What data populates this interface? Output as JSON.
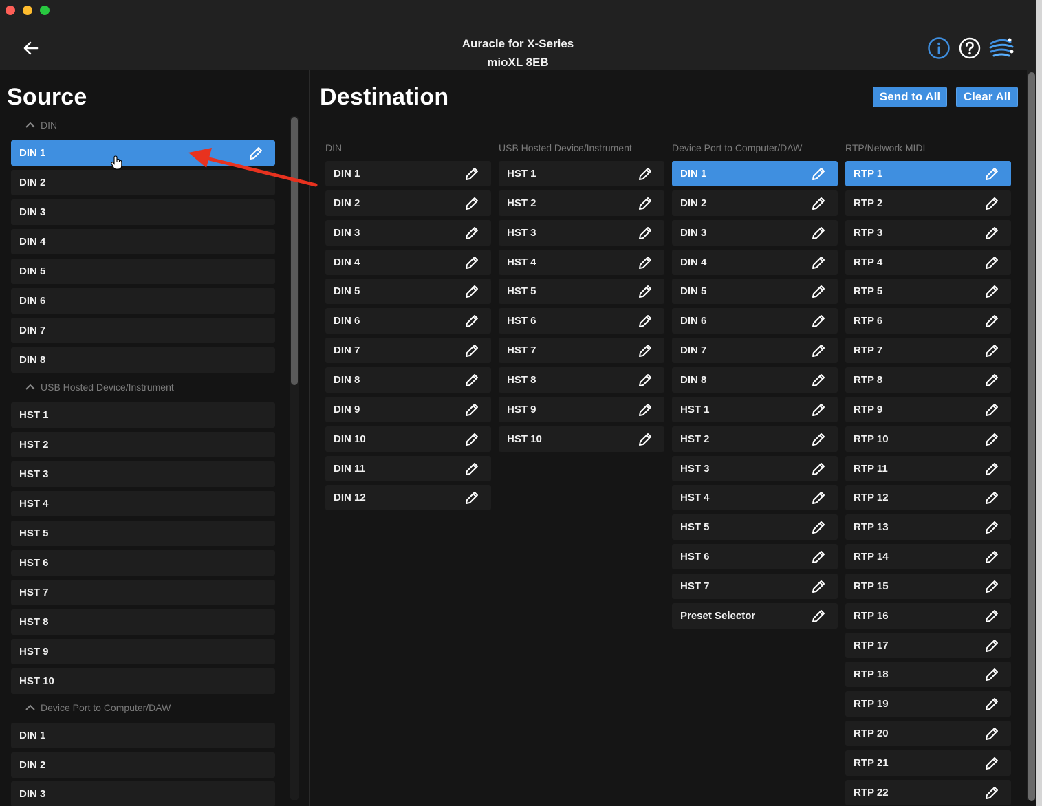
{
  "window": {
    "title_line1": "Auracle for X-Series",
    "title_line2": "mioXL 8EB"
  },
  "colors": {
    "accent": "#3f8fe0",
    "background": "#151515",
    "item_bg": "#1e1e1e",
    "annotation_arrow": "#e8321f"
  },
  "header": {
    "back_icon": "arrow-left-icon",
    "icons": [
      "info-icon",
      "help-icon",
      "brand-logo-icon"
    ]
  },
  "source": {
    "title": "Source",
    "sections": [
      {
        "label": "DIN",
        "items": [
          {
            "label": "DIN 1",
            "selected": true
          },
          {
            "label": "DIN 2"
          },
          {
            "label": "DIN 3"
          },
          {
            "label": "DIN 4"
          },
          {
            "label": "DIN 5"
          },
          {
            "label": "DIN 6"
          },
          {
            "label": "DIN 7"
          },
          {
            "label": "DIN 8"
          }
        ]
      },
      {
        "label": "USB Hosted Device/Instrument",
        "items": [
          {
            "label": "HST 1"
          },
          {
            "label": "HST 2"
          },
          {
            "label": "HST 3"
          },
          {
            "label": "HST 4"
          },
          {
            "label": "HST 5"
          },
          {
            "label": "HST 6"
          },
          {
            "label": "HST 7"
          },
          {
            "label": "HST 8"
          },
          {
            "label": "HST 9"
          },
          {
            "label": "HST 10"
          }
        ]
      },
      {
        "label": "Device Port to Computer/DAW",
        "items": [
          {
            "label": "DIN 1"
          },
          {
            "label": "DIN 2"
          },
          {
            "label": "DIN 3"
          }
        ]
      }
    ]
  },
  "destination": {
    "title": "Destination",
    "send_to_all_label": "Send to All",
    "clear_all_label": "Clear All",
    "columns": [
      {
        "header": "DIN",
        "items": [
          "DIN 1",
          "DIN 2",
          "DIN 3",
          "DIN 4",
          "DIN 5",
          "DIN 6",
          "DIN 7",
          "DIN 8",
          "DIN 9",
          "DIN 10",
          "DIN 11",
          "DIN 12"
        ],
        "selected": []
      },
      {
        "header": "USB Hosted Device/Instrument",
        "items": [
          "HST 1",
          "HST 2",
          "HST 3",
          "HST 4",
          "HST 5",
          "HST 6",
          "HST 7",
          "HST 8",
          "HST 9",
          "HST 10"
        ],
        "selected": []
      },
      {
        "header": "Device Port to Computer/DAW",
        "items": [
          "DIN 1",
          "DIN 2",
          "DIN 3",
          "DIN 4",
          "DIN 5",
          "DIN 6",
          "DIN 7",
          "DIN 8",
          "HST 1",
          "HST 2",
          "HST 3",
          "HST 4",
          "HST 5",
          "HST 6",
          "HST 7",
          "Preset Selector"
        ],
        "selected": [
          0
        ]
      },
      {
        "header": "RTP/Network MIDI",
        "items": [
          "RTP 1",
          "RTP 2",
          "RTP 3",
          "RTP 4",
          "RTP 5",
          "RTP 6",
          "RTP 7",
          "RTP 8",
          "RTP 9",
          "RTP 10",
          "RTP 11",
          "RTP 12",
          "RTP 13",
          "RTP 14",
          "RTP 15",
          "RTP 16",
          "RTP 17",
          "RTP 18",
          "RTP 19",
          "RTP 20",
          "RTP 21",
          "RTP 22"
        ],
        "selected": [
          0
        ]
      }
    ]
  }
}
